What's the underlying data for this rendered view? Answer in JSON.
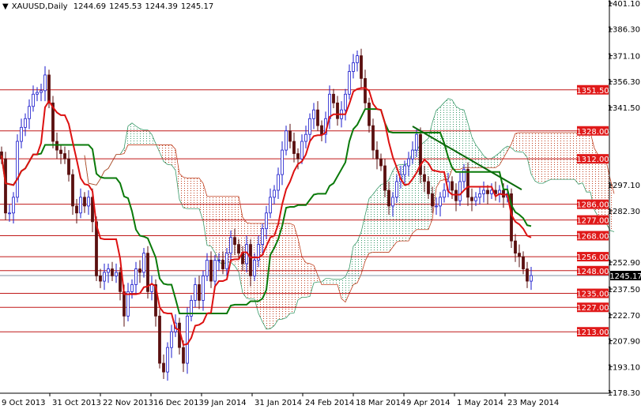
{
  "header": {
    "symbol": "XAUUSD,Daily",
    "open": "1244.69",
    "high": "1245.53",
    "low": "1244.39",
    "close": "1245.17"
  },
  "chart_data": {
    "type": "candlestick",
    "title": "XAUUSD,Daily",
    "ylim": [
      1178.3,
      1401.1
    ],
    "grid": false,
    "y_ticks": [
      "1401.10",
      "1386.30",
      "1371.10",
      "1356.30",
      "1341.50",
      "1297.10",
      "1282.30",
      "1252.90",
      "1237.50",
      "1222.70",
      "1207.90",
      "1193.10",
      "1178.30"
    ],
    "x_ticks": [
      "9 Oct 2013",
      "31 Oct 2013",
      "22 Nov 2013",
      "16 Dec 2013",
      "9 Jan 2014",
      "31 Jan 2014",
      "24 Feb 2014",
      "18 Mar 2014",
      "9 Apr 2014",
      "1 May 2014",
      "23 May 2014"
    ],
    "closes": [
      1312,
      1281,
      1281,
      1290,
      1322,
      1330,
      1335,
      1342,
      1349,
      1350,
      1351,
      1360,
      1344,
      1322,
      1317,
      1315,
      1312,
      1303,
      1285,
      1281,
      1290,
      1285,
      1290,
      1276,
      1245,
      1242,
      1247,
      1249,
      1245,
      1247,
      1236,
      1222,
      1236,
      1240,
      1249,
      1247,
      1258,
      1236,
      1240,
      1222,
      1195,
      1190,
      1204,
      1213,
      1218,
      1204,
      1195,
      1222,
      1231,
      1240,
      1231,
      1245,
      1254,
      1242,
      1254,
      1254,
      1249,
      1258,
      1267,
      1263,
      1258,
      1252,
      1263,
      1245,
      1254,
      1263,
      1272,
      1281,
      1290,
      1294,
      1303,
      1317,
      1328,
      1322,
      1315,
      1312,
      1322,
      1326,
      1335,
      1340,
      1331,
      1326,
      1335,
      1349,
      1344,
      1335,
      1340,
      1349,
      1362,
      1367,
      1371,
      1358,
      1344,
      1331,
      1317,
      1312,
      1308,
      1294,
      1285,
      1290,
      1299,
      1303,
      1308,
      1312,
      1317,
      1326,
      1303,
      1299,
      1292,
      1285,
      1285,
      1290,
      1294,
      1299,
      1294,
      1288,
      1299,
      1306,
      1290,
      1288,
      1290,
      1292,
      1294,
      1292,
      1294,
      1292,
      1294,
      1290,
      1292,
      1265,
      1258,
      1256,
      1249,
      1242,
      1245.17
    ],
    "levels": [
      "1351.50",
      "1328.00",
      "1312.00",
      "1286.00",
      "1277.00",
      "1268.00",
      "1256.00",
      "1248.00",
      "1235.00",
      "1227.00",
      "1213.00"
    ],
    "current_price": "1245.17",
    "trendline": {
      "from_bar": 104,
      "from_price": 1330.6,
      "to_bar": 131.6,
      "to_price": 1294.4
    },
    "indicators": [
      "Ichimoku Tenkan-sen",
      "Ichimoku Kijun-sen",
      "Ichimoku Cloud"
    ],
    "colors": {
      "bull": "#1a1acc",
      "bear": "#5a1010",
      "level": "#c01818",
      "level_label": "#e01a1a",
      "tenkan": "#dd1111",
      "kijun": "#0a7a0a",
      "cloud_bull": "#3a9a6a",
      "cloud_bear": "#c04020",
      "trendline": "#0a6a0a",
      "current": "#8090a0"
    }
  }
}
